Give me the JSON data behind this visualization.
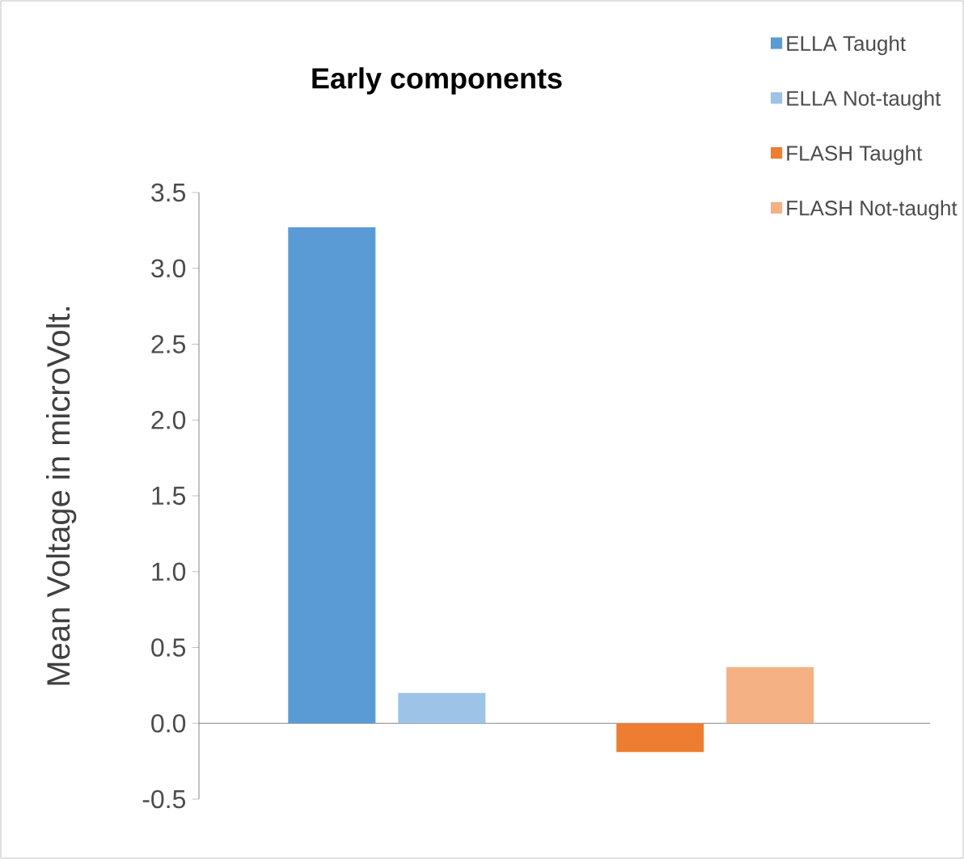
{
  "chart_data": {
    "type": "bar",
    "title": "Early components",
    "ylabel": "Mean Voltage in microVolt.",
    "categories": [
      null,
      null
    ],
    "series": [
      {
        "name": "ELLA Taught",
        "color": "#5b9bd5",
        "values": [
          3.27,
          null
        ]
      },
      {
        "name": "ELLA Not-taught",
        "color": "#9dc3e6",
        "values": [
          0.2,
          null
        ]
      },
      {
        "name": "FLASH Taught",
        "color": "#ed7d31",
        "values": [
          null,
          -0.19
        ]
      },
      {
        "name": "FLASH Not-taught",
        "color": "#f4b183",
        "values": [
          null,
          0.37
        ]
      }
    ],
    "ylim": [
      -0.5,
      3.5
    ],
    "yticks": [
      {
        "value": -0.5,
        "label": "-0.5"
      },
      {
        "value": 0,
        "label": "0.0"
      },
      {
        "value": 0.5,
        "label": "0.5"
      },
      {
        "value": 1,
        "label": "1.0"
      },
      {
        "value": 1.5,
        "label": "1.5"
      },
      {
        "value": 2,
        "label": "2.0"
      },
      {
        "value": 2.5,
        "label": "2.5"
      },
      {
        "value": 3,
        "label": "3.0"
      },
      {
        "value": 3.5,
        "label": "3.5"
      }
    ],
    "legend": "top right",
    "tick_labels": "y"
  }
}
